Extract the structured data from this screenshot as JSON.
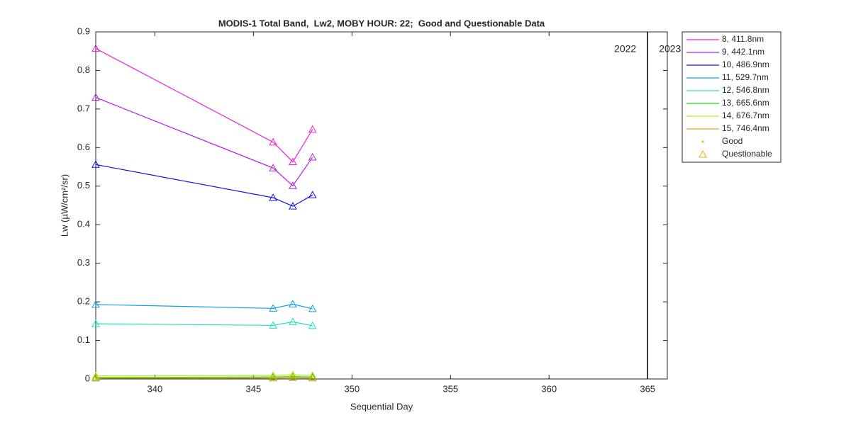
{
  "chart_data": {
    "type": "line",
    "title": "MODIS-1 Total Band,  Lw2, MOBY HOUR: 22;  Good and Questionable Data",
    "xlabel": "Sequential Day",
    "ylabel": "Lw (µW/cm²/sr)",
    "x": [
      337,
      346,
      347,
      348
    ],
    "series": [
      {
        "name": "8, 411.8nm",
        "color": "#f020e0",
        "values": [
          0.857,
          0.614,
          0.563,
          0.647
        ]
      },
      {
        "name": "9, 442.1nm",
        "color": "#b020e0",
        "values": [
          0.73,
          0.547,
          0.501,
          0.575
        ]
      },
      {
        "name": "10, 486.9nm",
        "color": "#1010e0",
        "values": [
          0.556,
          0.47,
          0.448,
          0.477
        ]
      },
      {
        "name": "11, 529.7nm",
        "color": "#10a0e0",
        "values": [
          0.193,
          0.183,
          0.194,
          0.182
        ]
      },
      {
        "name": "12, 546.8nm",
        "color": "#20e0c0",
        "values": [
          0.143,
          0.139,
          0.148,
          0.138
        ]
      },
      {
        "name": "13, 665.6nm",
        "color": "#20d020",
        "values": [
          0.004,
          0.005,
          0.006,
          0.005
        ]
      },
      {
        "name": "14, 676.7nm",
        "color": "#b0f020",
        "values": [
          0.008,
          0.009,
          0.011,
          0.009
        ]
      },
      {
        "name": "15, 746.4nm",
        "color": "#f0a010",
        "values": [
          0.002,
          0.002,
          0.003,
          0.002
        ]
      }
    ],
    "marker_legend": [
      "Good",
      "Questionable"
    ],
    "marker_legend_color": "#f0b000",
    "year_boundary": 365,
    "annotations": [
      "2022",
      "2023"
    ],
    "xlim": [
      337,
      366
    ],
    "xticks": [
      340,
      345,
      350,
      355,
      360,
      365
    ],
    "ylim": [
      0,
      0.9
    ],
    "yticks": [
      0,
      0.1,
      0.2,
      0.3,
      0.4,
      0.5,
      0.6,
      0.7,
      0.8,
      0.9
    ],
    "grid": false
  }
}
